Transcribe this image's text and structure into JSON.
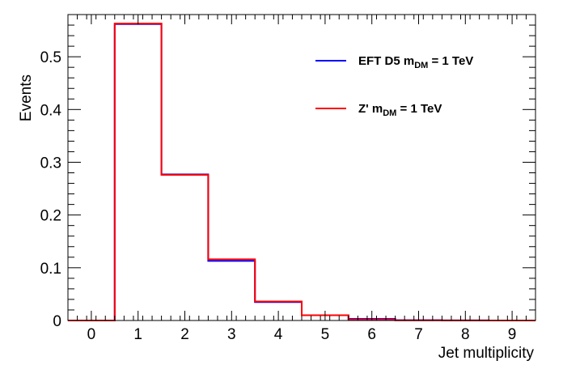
{
  "chart_data": {
    "type": "step-histogram",
    "xlabel": "Jet multiplicity",
    "ylabel": "Events",
    "xlim": [
      -0.5,
      9.5
    ],
    "ylim": [
      0,
      0.58
    ],
    "x_ticks": [
      0,
      1,
      2,
      3,
      4,
      5,
      6,
      7,
      8,
      9
    ],
    "y_ticks": [
      0,
      0.1,
      0.2,
      0.3,
      0.4,
      0.5
    ],
    "bin_width": 1,
    "grid": false,
    "legend_position": "top-right",
    "series": [
      {
        "name_main": "EFT D5 m",
        "name_sub": "DM",
        "name_tail": " = 1 TeV",
        "color": "#0000ff",
        "bins": [
          0,
          1,
          2,
          3,
          4,
          5,
          6,
          7,
          8,
          9
        ],
        "values": [
          0,
          0.562,
          0.277,
          0.113,
          0.035,
          0.01,
          0.003,
          0.0005,
          0.0001,
          0
        ]
      },
      {
        "name_main": "Z' m",
        "name_sub": "DM",
        "name_tail": " = 1 TeV",
        "color": "#ff0000",
        "bins": [
          0,
          1,
          2,
          3,
          4,
          5,
          6,
          7,
          8,
          9
        ],
        "values": [
          0,
          0.563,
          0.276,
          0.116,
          0.036,
          0.01,
          0.002,
          0.0004,
          0.0001,
          0
        ]
      }
    ]
  }
}
